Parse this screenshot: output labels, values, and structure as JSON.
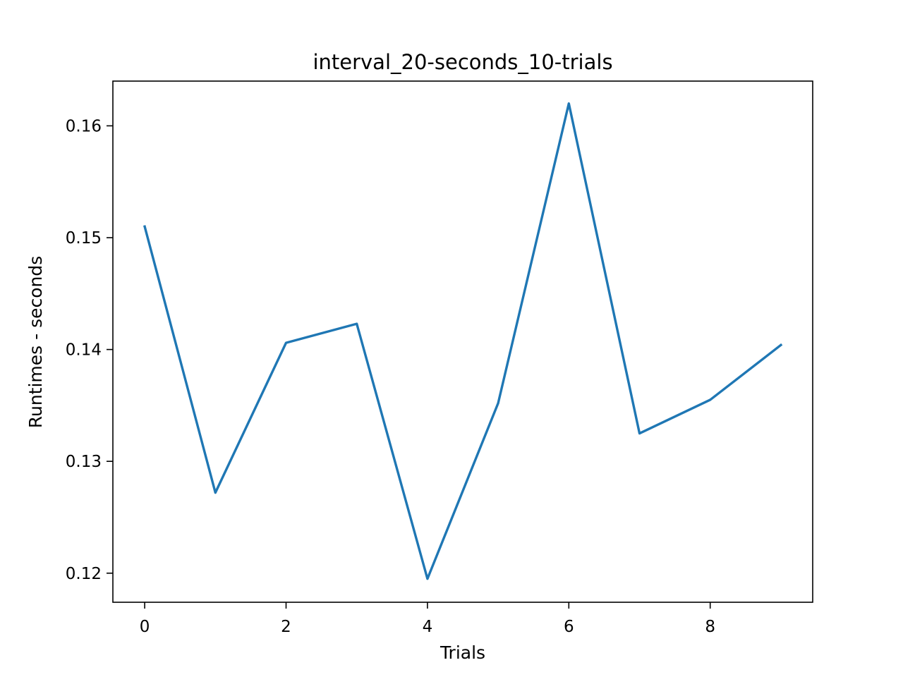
{
  "chart_data": {
    "type": "line",
    "title": "interval_20-seconds_10-trials",
    "xlabel": "Trials",
    "ylabel": "Runtimes - seconds",
    "xlim": [
      -0.45,
      9.45
    ],
    "ylim": [
      0.1174,
      0.164
    ],
    "xticks": [
      0,
      2,
      4,
      6,
      8
    ],
    "xtick_labels": [
      "0",
      "2",
      "4",
      "6",
      "8"
    ],
    "yticks": [
      0.12,
      0.13,
      0.14,
      0.15,
      0.16
    ],
    "ytick_labels": [
      "0.12",
      "0.13",
      "0.14",
      "0.15",
      "0.16"
    ],
    "grid": false,
    "legend": "none",
    "series": [
      {
        "color": "#1f77b4",
        "x": [
          0,
          1,
          2,
          3,
          4,
          5,
          6,
          7,
          8,
          9
        ],
        "values": [
          0.151,
          0.1272,
          0.1406,
          0.1423,
          0.1195,
          0.1352,
          0.162,
          0.1325,
          0.1355,
          0.1404
        ]
      }
    ]
  }
}
